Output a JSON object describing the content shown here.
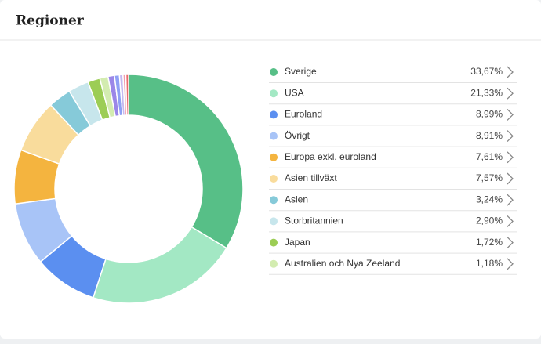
{
  "chart_data": {
    "type": "pie",
    "title": "Regioner",
    "categories": [
      "Sverige",
      "USA",
      "Euroland",
      "Övrigt",
      "Europa exkl. euroland",
      "Asien tillväxt",
      "Asien",
      "Storbritannien",
      "Japan",
      "Australien och Nya Zeeland",
      null,
      null,
      null,
      null,
      null
    ],
    "values": [
      33.67,
      21.33,
      8.99,
      8.91,
      7.61,
      7.57,
      3.24,
      2.9,
      1.72,
      1.18,
      0.9,
      0.7,
      0.5,
      0.4,
      0.38
    ],
    "value_labels": [
      "33,67%",
      "21,33%",
      "8,99%",
      "8,91%",
      "7,61%",
      "7,57%",
      "3,24%",
      "2,90%",
      "1,72%",
      "1,18%",
      null,
      null,
      null,
      null,
      null
    ],
    "colors": [
      "#57bf87",
      "#a3e8c4",
      "#5b8ff0",
      "#a8c4f7",
      "#f4b43f",
      "#f9dc9c",
      "#86cad9",
      "#c7e6ec",
      "#9ccd55",
      "#d3ecb0",
      "#9b87e8",
      "#8fa0f5",
      "#c6b8f0",
      "#f29ab0",
      "#e86b6b"
    ]
  }
}
